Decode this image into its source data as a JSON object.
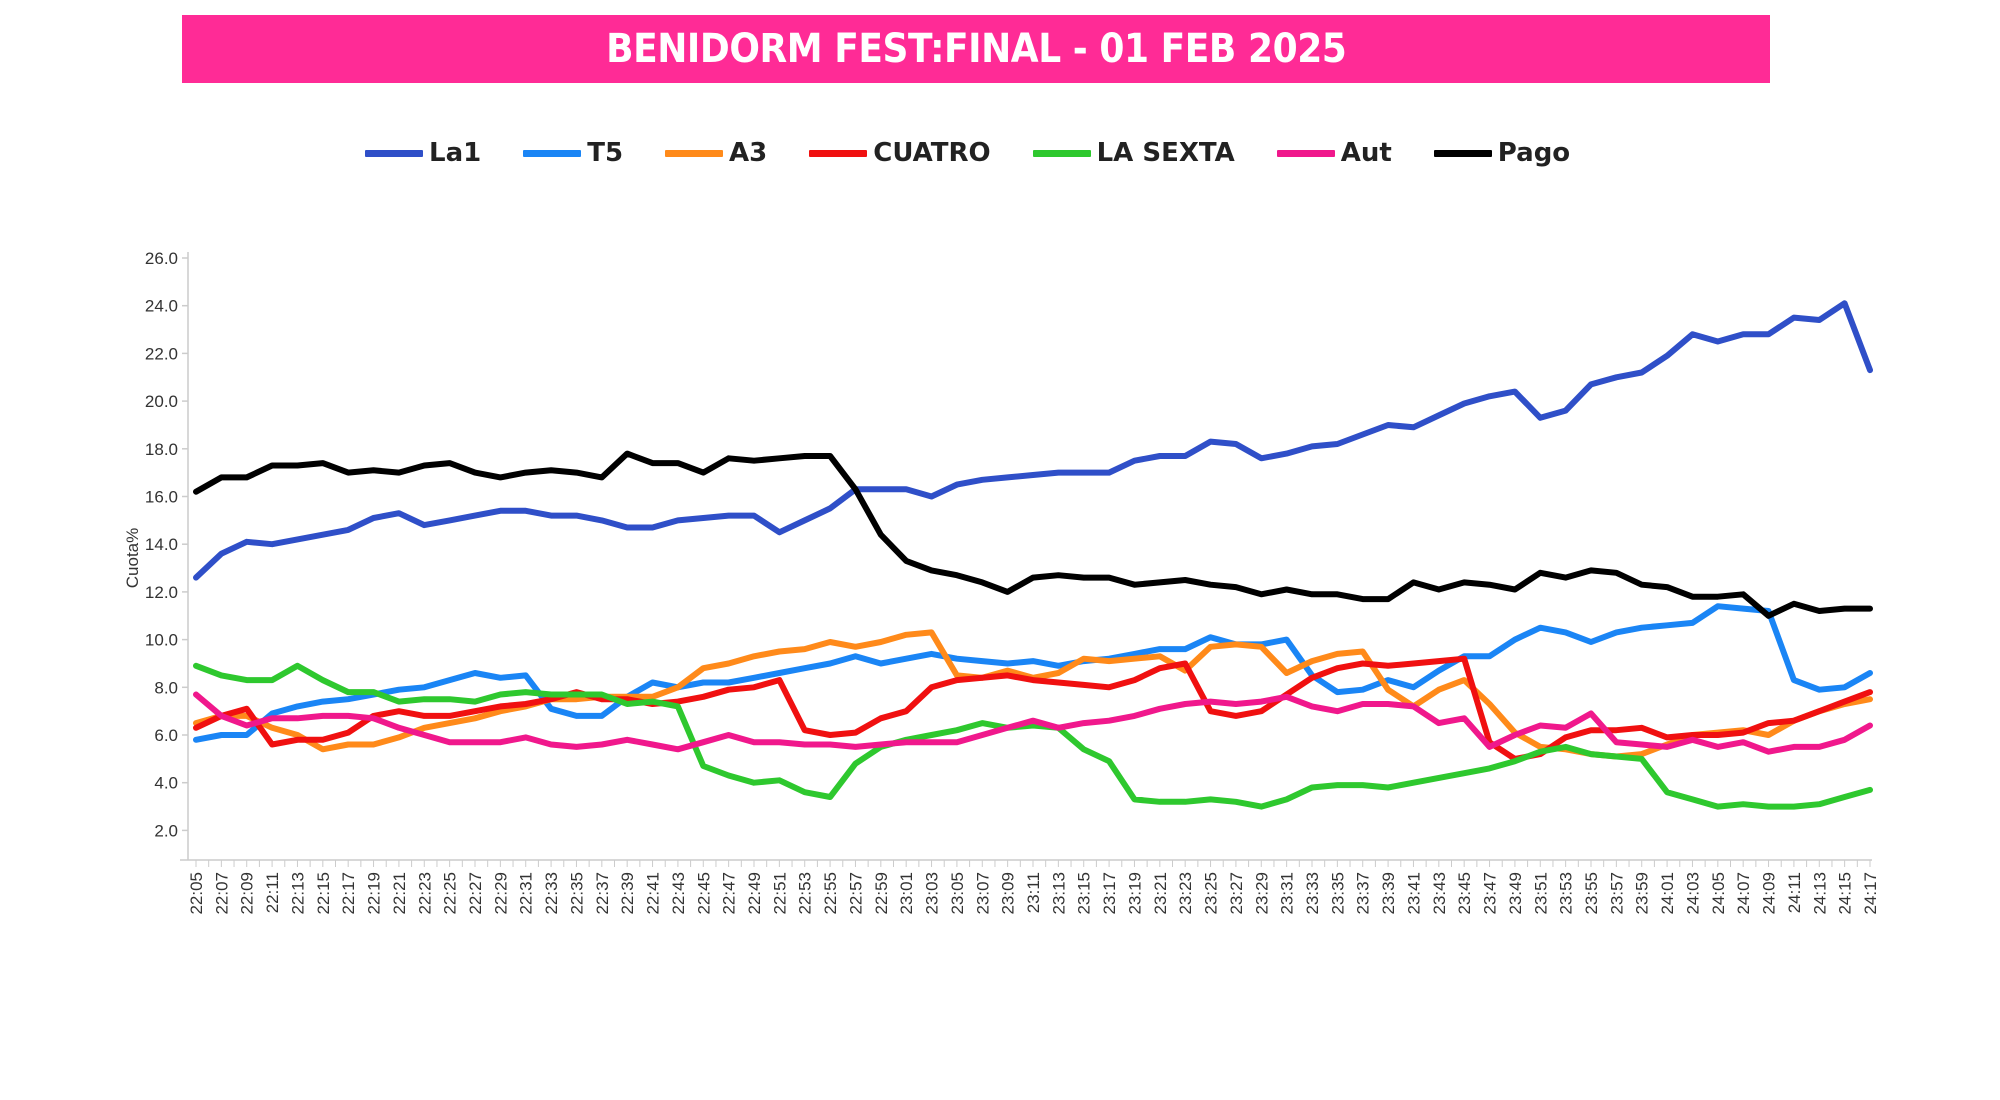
{
  "title": "BENIDORM FEST:FINAL - 01 FEB 2025",
  "colors": {
    "title_bg": "#ff2b96",
    "axis": "#cccccc"
  },
  "legend": [
    {
      "name": "La1",
      "color": "#2f4fc8"
    },
    {
      "name": "T5",
      "color": "#1a85f5"
    },
    {
      "name": "A3",
      "color": "#ff8a1a"
    },
    {
      "name": "CUATRO",
      "color": "#f01010"
    },
    {
      "name": "LA SEXTA",
      "color": "#2ec82e"
    },
    {
      "name": "Aut",
      "color": "#f0188c"
    },
    {
      "name": "Pago",
      "color": "#000000"
    }
  ],
  "chart_data": {
    "type": "line",
    "title": "BENIDORM FEST:FINAL - 01 FEB 2025",
    "xlabel": "",
    "ylabel": "Cuota%",
    "ylim": [
      2.0,
      26.0
    ],
    "yticks": [
      "2.0",
      "4.0",
      "6.0",
      "8.0",
      "10.0",
      "12.0",
      "14.0",
      "16.0",
      "18.0",
      "20.0",
      "22.0",
      "24.0",
      "26.0"
    ],
    "grid": false,
    "legend_position": "top",
    "categories": [
      "22:05",
      "22:07",
      "22:09",
      "22:11",
      "22:13",
      "22:15",
      "22:17",
      "22:19",
      "22:21",
      "22:23",
      "22:25",
      "22:27",
      "22:29",
      "22:31",
      "22:33",
      "22:35",
      "22:37",
      "22:39",
      "22:41",
      "22:43",
      "22:45",
      "22:47",
      "22:49",
      "22:51",
      "22:53",
      "22:55",
      "22:57",
      "22:59",
      "23:01",
      "23:03",
      "23:05",
      "23:07",
      "23:09",
      "23:11",
      "23:13",
      "23:15",
      "23:17",
      "23:19",
      "23:21",
      "23:23",
      "23:25",
      "23:27",
      "23:29",
      "23:31",
      "23:33",
      "23:35",
      "23:37",
      "23:39",
      "23:41",
      "23:43",
      "23:45",
      "23:47",
      "23:49",
      "23:51",
      "23:53",
      "23:55",
      "23:57",
      "23:59",
      "24:01",
      "24:03",
      "24:05",
      "24:07",
      "24:09",
      "24:11",
      "24:13",
      "24:15",
      "24:17"
    ],
    "series": [
      {
        "name": "La1",
        "values": [
          12.6,
          13.6,
          14.1,
          14.0,
          14.2,
          14.4,
          14.6,
          15.1,
          15.3,
          14.8,
          15.0,
          15.2,
          15.4,
          15.4,
          15.2,
          15.2,
          15.0,
          14.7,
          14.7,
          15.0,
          15.1,
          15.2,
          15.2,
          14.5,
          15.0,
          15.5,
          16.3,
          16.3,
          16.3,
          16.0,
          16.5,
          16.7,
          16.8,
          16.9,
          17.0,
          17.0,
          17.0,
          17.5,
          17.7,
          17.7,
          18.3,
          18.2,
          17.6,
          17.8,
          18.1,
          18.2,
          18.6,
          19.0,
          18.9,
          19.4,
          19.9,
          20.2,
          20.4,
          19.3,
          19.6,
          20.7,
          21.0,
          21.2,
          21.9,
          22.8,
          22.5,
          22.8,
          22.8,
          23.5,
          23.4,
          24.1,
          21.3
        ]
      },
      {
        "name": "T5",
        "values": [
          5.8,
          6.0,
          6.0,
          6.9,
          7.2,
          7.4,
          7.5,
          7.7,
          7.9,
          8.0,
          8.3,
          8.6,
          8.4,
          8.5,
          7.1,
          6.8,
          6.8,
          7.6,
          8.2,
          8.0,
          8.2,
          8.2,
          8.4,
          8.6,
          8.8,
          9.0,
          9.3,
          9.0,
          9.2,
          9.4,
          9.2,
          9.1,
          9.0,
          9.1,
          8.9,
          9.1,
          9.2,
          9.4,
          9.6,
          9.6,
          10.1,
          9.8,
          9.8,
          10.0,
          8.5,
          7.8,
          7.9,
          8.3,
          8.0,
          8.7,
          9.3,
          9.3,
          10.0,
          10.5,
          10.3,
          9.9,
          10.3,
          10.5,
          10.6,
          10.7,
          11.4,
          11.3,
          11.2,
          8.3,
          7.9,
          8.0,
          8.6
        ]
      },
      {
        "name": "A3",
        "values": [
          6.5,
          6.8,
          6.8,
          6.3,
          6.0,
          5.4,
          5.6,
          5.6,
          5.9,
          6.3,
          6.5,
          6.7,
          7.0,
          7.2,
          7.5,
          7.5,
          7.6,
          7.6,
          7.6,
          8.0,
          8.8,
          9.0,
          9.3,
          9.5,
          9.6,
          9.9,
          9.7,
          9.9,
          10.2,
          10.3,
          8.5,
          8.4,
          8.7,
          8.4,
          8.6,
          9.2,
          9.1,
          9.2,
          9.3,
          8.7,
          9.7,
          9.8,
          9.7,
          8.6,
          9.1,
          9.4,
          9.5,
          7.9,
          7.2,
          7.9,
          8.3,
          7.3,
          6.1,
          5.5,
          5.4,
          5.2,
          5.1,
          5.2,
          5.6,
          6.0,
          6.1,
          6.2,
          6.0,
          6.6,
          7.0,
          7.3,
          7.5
        ]
      },
      {
        "name": "CUATRO",
        "values": [
          6.3,
          6.8,
          7.1,
          5.6,
          5.8,
          5.8,
          6.1,
          6.8,
          7.0,
          6.8,
          6.8,
          7.0,
          7.2,
          7.3,
          7.5,
          7.8,
          7.5,
          7.5,
          7.3,
          7.4,
          7.6,
          7.9,
          8.0,
          8.3,
          6.2,
          6.0,
          6.1,
          6.7,
          7.0,
          8.0,
          8.3,
          8.4,
          8.5,
          8.3,
          8.2,
          8.1,
          8.0,
          8.3,
          8.8,
          9.0,
          7.0,
          6.8,
          7.0,
          7.7,
          8.4,
          8.8,
          9.0,
          8.9,
          9.0,
          9.1,
          9.2,
          5.7,
          5.0,
          5.2,
          5.9,
          6.2,
          6.2,
          6.3,
          5.9,
          6.0,
          6.0,
          6.1,
          6.5,
          6.6,
          7.0,
          7.4,
          7.8
        ]
      },
      {
        "name": "LA SEXTA",
        "values": [
          8.9,
          8.5,
          8.3,
          8.3,
          8.9,
          8.3,
          7.8,
          7.8,
          7.4,
          7.5,
          7.5,
          7.4,
          7.7,
          7.8,
          7.7,
          7.7,
          7.7,
          7.3,
          7.4,
          7.2,
          4.7,
          4.3,
          4.0,
          4.1,
          3.6,
          3.4,
          4.8,
          5.5,
          5.8,
          6.0,
          6.2,
          6.5,
          6.3,
          6.4,
          6.3,
          5.4,
          4.9,
          3.3,
          3.2,
          3.2,
          3.3,
          3.2,
          3.0,
          3.3,
          3.8,
          3.9,
          3.9,
          3.8,
          4.0,
          4.2,
          4.4,
          4.6,
          4.9,
          5.3,
          5.5,
          5.2,
          5.1,
          5.0,
          3.6,
          3.3,
          3.0,
          3.1,
          3.0,
          3.0,
          3.1,
          3.4,
          3.7
        ]
      },
      {
        "name": "Aut",
        "values": [
          7.7,
          6.8,
          6.4,
          6.7,
          6.7,
          6.8,
          6.8,
          6.7,
          6.3,
          6.0,
          5.7,
          5.7,
          5.7,
          5.9,
          5.6,
          5.5,
          5.6,
          5.8,
          5.6,
          5.4,
          5.7,
          6.0,
          5.7,
          5.7,
          5.6,
          5.6,
          5.5,
          5.6,
          5.7,
          5.7,
          5.7,
          6.0,
          6.3,
          6.6,
          6.3,
          6.5,
          6.6,
          6.8,
          7.1,
          7.3,
          7.4,
          7.3,
          7.4,
          7.6,
          7.2,
          7.0,
          7.3,
          7.3,
          7.2,
          6.5,
          6.7,
          5.5,
          6.0,
          6.4,
          6.3,
          6.9,
          5.7,
          5.6,
          5.5,
          5.8,
          5.5,
          5.7,
          5.3,
          5.5,
          5.5,
          5.8,
          6.4
        ]
      },
      {
        "name": "Pago",
        "values": [
          16.2,
          16.8,
          16.8,
          17.3,
          17.3,
          17.4,
          17.0,
          17.1,
          17.0,
          17.3,
          17.4,
          17.0,
          16.8,
          17.0,
          17.1,
          17.0,
          16.8,
          17.8,
          17.4,
          17.4,
          17.0,
          17.6,
          17.5,
          17.6,
          17.7,
          17.7,
          16.3,
          14.4,
          13.3,
          12.9,
          12.7,
          12.4,
          12.0,
          12.6,
          12.7,
          12.6,
          12.6,
          12.3,
          12.4,
          12.5,
          12.3,
          12.2,
          11.9,
          12.1,
          11.9,
          11.9,
          11.7,
          11.7,
          12.4,
          12.1,
          12.4,
          12.3,
          12.1,
          12.8,
          12.6,
          12.9,
          12.8,
          12.3,
          12.2,
          11.8,
          11.8,
          11.9,
          11.0,
          11.5,
          11.2,
          11.3,
          11.3
        ]
      }
    ]
  }
}
